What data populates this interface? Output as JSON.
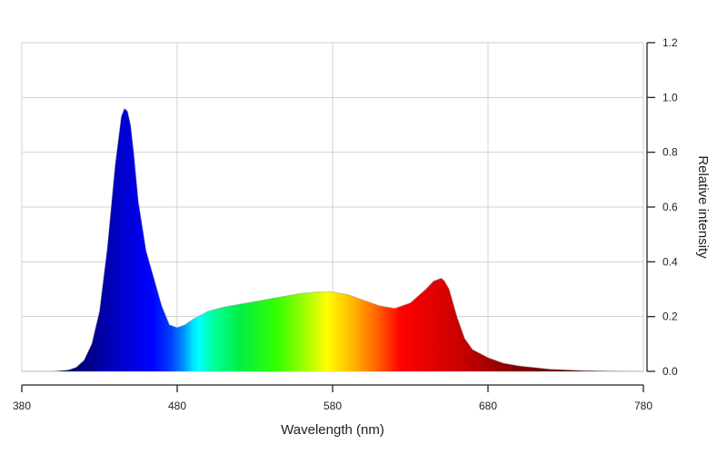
{
  "chart_data": {
    "type": "area",
    "title": "",
    "xlabel": "Wavelength (nm)",
    "ylabel": "Relative intensity",
    "xlim": [
      380,
      780
    ],
    "ylim": [
      0,
      1.2
    ],
    "x_tick_values": [
      380,
      480,
      580,
      680,
      780
    ],
    "x_tick_labels": [
      "380",
      "480",
      "580",
      "680",
      "780"
    ],
    "y_tick_values": [
      0,
      0.2,
      0.4,
      0.6,
      0.8,
      1.0,
      1.2
    ],
    "y_tick_labels": [
      "0.0",
      "0.2",
      "0.4",
      "0.6",
      "0.8",
      "1.0",
      "1.2"
    ],
    "y_axis_side": "right",
    "grid": true,
    "fill": "visible-spectrum gradient",
    "series": [
      {
        "x": [
          380,
          400,
          410,
          415,
          420,
          425,
          430,
          435,
          440,
          444,
          446,
          448,
          450,
          452,
          455,
          460,
          465,
          470,
          475,
          480,
          485,
          490,
          500,
          510,
          520,
          530,
          540,
          550,
          560,
          570,
          580,
          590,
          600,
          610,
          620,
          630,
          640,
          645,
          650,
          652,
          655,
          660,
          665,
          670,
          680,
          690,
          700,
          720,
          740,
          760,
          780
        ],
        "y": [
          0.0,
          0.0,
          0.005,
          0.015,
          0.04,
          0.1,
          0.22,
          0.45,
          0.75,
          0.93,
          0.96,
          0.95,
          0.9,
          0.8,
          0.62,
          0.44,
          0.34,
          0.24,
          0.17,
          0.16,
          0.17,
          0.19,
          0.22,
          0.235,
          0.245,
          0.255,
          0.265,
          0.275,
          0.285,
          0.29,
          0.29,
          0.28,
          0.26,
          0.24,
          0.23,
          0.25,
          0.3,
          0.33,
          0.34,
          0.33,
          0.3,
          0.2,
          0.12,
          0.08,
          0.05,
          0.03,
          0.02,
          0.008,
          0.003,
          0.001,
          0.0
        ]
      }
    ]
  }
}
